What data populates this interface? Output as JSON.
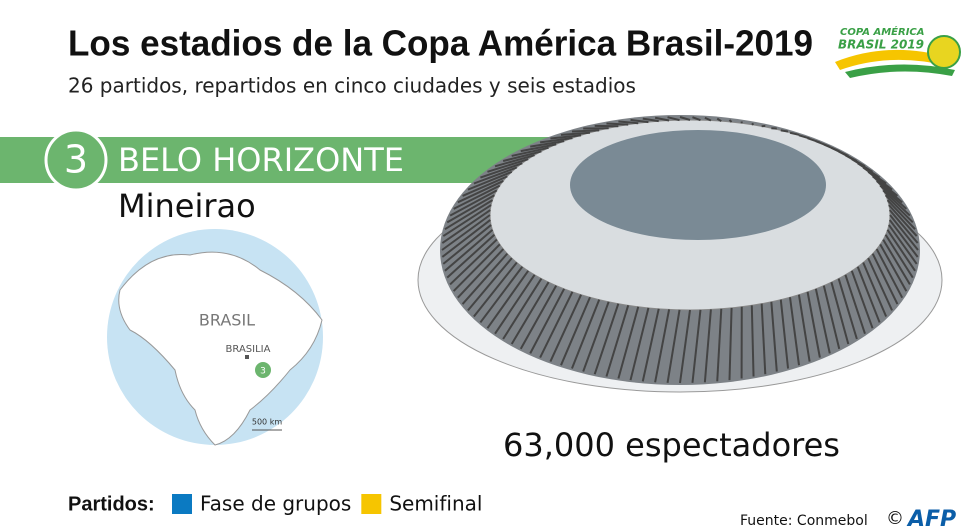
{
  "header": {
    "title": "Los estadios de la Copa América Brasil-2019",
    "subtitle": "26 partidos, repartidos en cinco ciudades y seis estadios",
    "logo_line1": "COPA AMÉRICA",
    "logo_line2": "BRASIL 2019"
  },
  "venue": {
    "number": "3",
    "city": "BELO HORIZONTE",
    "stadium": "Mineirao",
    "capacity": "63,000 espectadores"
  },
  "map": {
    "country": "BRASIL",
    "capital": "BRASILIA",
    "scale": "500 km"
  },
  "legend": {
    "title": "Partidos:",
    "items": [
      {
        "label": "Fase de grupos",
        "color": "#0b7ac2"
      },
      {
        "label": "Semifinal",
        "color": "#f6c500"
      }
    ]
  },
  "footer": {
    "source": "Fuente: Conmebol",
    "copyright": "©",
    "agency": "AFP"
  }
}
